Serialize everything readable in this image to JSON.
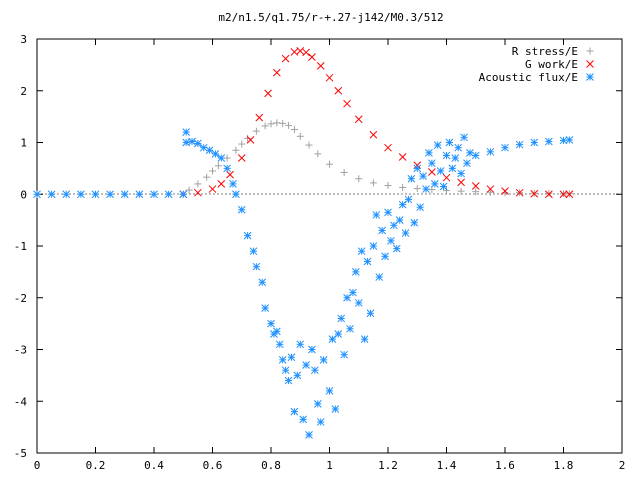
{
  "chart_data": {
    "type": "scatter",
    "title": "m2/n1.5/q1.75/r-+.27-j142/M0.3/512",
    "xlabel": "",
    "ylabel": "",
    "xlim": [
      0,
      2
    ],
    "ylim": [
      -5,
      3
    ],
    "x_ticks": [
      "0",
      "0.2",
      "0.4",
      "0.6",
      "0.8",
      "1",
      "1.2",
      "1.4",
      "1.6",
      "1.8",
      "2"
    ],
    "y_ticks": [
      "3",
      "2",
      "1",
      "0",
      "-1",
      "-2",
      "-3",
      "-4",
      "-5"
    ],
    "grid": false,
    "legend_position": "top-right",
    "series": [
      {
        "name": "R stress/E",
        "marker": "plus",
        "color": "#a0a0a0",
        "x": [
          0.5,
          0.52,
          0.55,
          0.58,
          0.6,
          0.62,
          0.65,
          0.68,
          0.7,
          0.72,
          0.75,
          0.78,
          0.8,
          0.82,
          0.84,
          0.86,
          0.88,
          0.9,
          0.93,
          0.96,
          1.0,
          1.05,
          1.1,
          1.15,
          1.2,
          1.25,
          1.3,
          1.35,
          1.4,
          1.45,
          1.5,
          1.55,
          1.6,
          1.65,
          1.7,
          1.75,
          1.8,
          1.82
        ],
        "y": [
          0.0,
          0.08,
          0.2,
          0.33,
          0.45,
          0.55,
          0.7,
          0.85,
          0.97,
          1.08,
          1.22,
          1.32,
          1.36,
          1.38,
          1.37,
          1.33,
          1.25,
          1.12,
          0.95,
          0.78,
          0.58,
          0.42,
          0.3,
          0.22,
          0.17,
          0.13,
          0.11,
          0.09,
          0.07,
          0.06,
          0.05,
          0.04,
          0.03,
          0.03,
          0.02,
          0.02,
          0.01,
          0.01
        ]
      },
      {
        "name": "G work/E",
        "marker": "cross",
        "color": "#ff0000",
        "x": [
          0.5,
          0.55,
          0.6,
          0.63,
          0.66,
          0.7,
          0.73,
          0.76,
          0.79,
          0.82,
          0.85,
          0.88,
          0.9,
          0.92,
          0.94,
          0.97,
          1.0,
          1.03,
          1.06,
          1.1,
          1.15,
          1.2,
          1.25,
          1.3,
          1.35,
          1.4,
          1.45,
          1.5,
          1.55,
          1.6,
          1.65,
          1.7,
          1.75,
          1.8,
          1.82
        ],
        "y": [
          0.0,
          0.03,
          0.1,
          0.2,
          0.38,
          0.7,
          1.05,
          1.48,
          1.95,
          2.35,
          2.62,
          2.75,
          2.77,
          2.74,
          2.65,
          2.48,
          2.25,
          2.0,
          1.75,
          1.45,
          1.15,
          0.9,
          0.72,
          0.56,
          0.43,
          0.32,
          0.23,
          0.16,
          0.1,
          0.06,
          0.03,
          0.01,
          0.0,
          0.0,
          0.0
        ]
      },
      {
        "name": "Acoustic flux/E",
        "marker": "star",
        "color": "#1e90ff",
        "x": [
          0.0,
          0.05,
          0.1,
          0.15,
          0.2,
          0.25,
          0.3,
          0.35,
          0.4,
          0.45,
          0.5,
          0.51,
          0.51,
          0.53,
          0.55,
          0.57,
          0.59,
          0.61,
          0.63,
          0.65,
          0.67,
          0.68,
          0.7,
          0.72,
          0.74,
          0.75,
          0.77,
          0.78,
          0.8,
          0.81,
          0.82,
          0.83,
          0.84,
          0.85,
          0.86,
          0.87,
          0.88,
          0.89,
          0.9,
          0.91,
          0.92,
          0.93,
          0.94,
          0.95,
          0.96,
          0.97,
          0.98,
          1.0,
          1.01,
          1.02,
          1.03,
          1.04,
          1.05,
          1.06,
          1.07,
          1.08,
          1.09,
          1.1,
          1.11,
          1.12,
          1.13,
          1.14,
          1.15,
          1.16,
          1.17,
          1.18,
          1.19,
          1.2,
          1.21,
          1.22,
          1.23,
          1.24,
          1.25,
          1.26,
          1.27,
          1.28,
          1.29,
          1.3,
          1.31,
          1.32,
          1.33,
          1.34,
          1.35,
          1.36,
          1.37,
          1.38,
          1.39,
          1.4,
          1.41,
          1.42,
          1.43,
          1.44,
          1.45,
          1.46,
          1.47,
          1.48,
          1.5,
          1.55,
          1.6,
          1.65,
          1.7,
          1.75,
          1.8,
          1.82
        ],
        "y": [
          0.0,
          0.0,
          0.0,
          0.0,
          0.0,
          0.0,
          0.0,
          0.0,
          0.0,
          0.0,
          0.0,
          1.2,
          1.0,
          1.02,
          0.98,
          0.9,
          0.85,
          0.78,
          0.7,
          0.5,
          0.2,
          0.0,
          -0.3,
          -0.8,
          -1.1,
          -1.4,
          -1.7,
          -2.2,
          -2.5,
          -2.7,
          -2.65,
          -2.9,
          -3.2,
          -3.4,
          -3.6,
          -3.15,
          -4.2,
          -3.5,
          -2.9,
          -4.35,
          -3.3,
          -4.65,
          -3.0,
          -3.4,
          -4.05,
          -4.4,
          -3.2,
          -3.8,
          -2.8,
          -4.15,
          -2.7,
          -2.4,
          -3.1,
          -2.0,
          -2.6,
          -1.9,
          -1.5,
          -2.1,
          -1.1,
          -2.8,
          -1.3,
          -2.3,
          -1.0,
          -0.4,
          -1.6,
          -0.7,
          -1.2,
          -0.35,
          -0.9,
          -0.6,
          -1.05,
          -0.5,
          -0.2,
          -0.75,
          -0.1,
          0.3,
          -0.55,
          0.5,
          -0.25,
          0.35,
          0.1,
          0.8,
          0.6,
          0.2,
          0.95,
          0.45,
          0.15,
          0.75,
          1.0,
          0.5,
          0.7,
          0.9,
          0.4,
          1.1,
          0.6,
          0.8,
          0.75,
          0.82,
          0.9,
          0.96,
          1.0,
          1.02,
          1.04,
          1.05
        ]
      }
    ]
  }
}
